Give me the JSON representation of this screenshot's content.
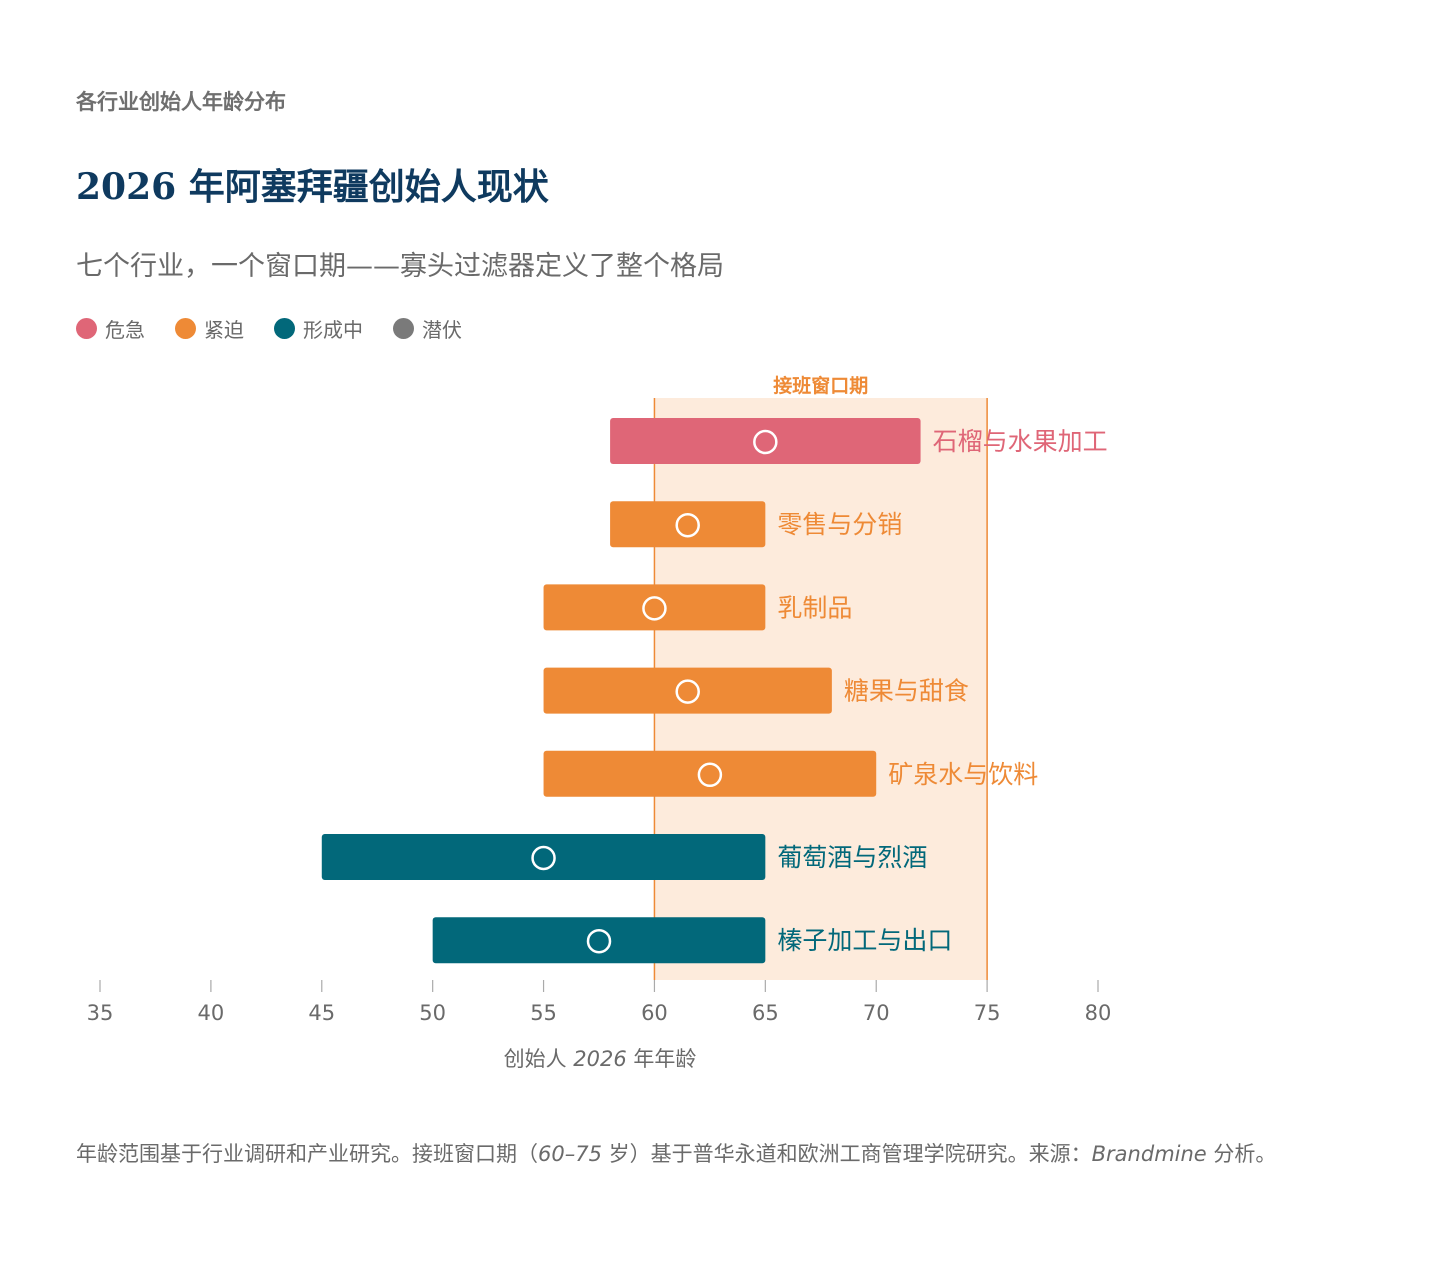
{
  "header": {
    "eyebrow": "各行业创始人年龄分布",
    "title": "2026 年阿塞拜疆创始人现状",
    "subtitle": "七个行业，一个窗口期——寡头过滤器定义了整个格局"
  },
  "legend": [
    {
      "label": "危急",
      "color": "#df6677"
    },
    {
      "label": "紧迫",
      "color": "#ee8a36"
    },
    {
      "label": "形成中",
      "color": "#02687a"
    },
    {
      "label": "潜伏",
      "color": "#7a7a7a"
    }
  ],
  "chart_data": {
    "type": "range-bar",
    "window": {
      "label": "接班窗口期",
      "start": 60,
      "end": 75,
      "color": "#ee8a36"
    },
    "xlim": [
      35,
      80
    ],
    "xticks": [
      "35",
      "40",
      "45",
      "50",
      "55",
      "60",
      "65",
      "70",
      "75",
      "80"
    ],
    "xlabel_main": "创始人",
    "xlabel_year": "2026",
    "xlabel_tail": "年年龄",
    "series": [
      {
        "name": "石榴与水果加工",
        "min": 58,
        "max": 72,
        "marker": 65,
        "status": "危急",
        "color": "#df6677"
      },
      {
        "name": "零售与分销",
        "min": 58,
        "max": 65,
        "marker": 61.5,
        "status": "紧迫",
        "color": "#ee8a36"
      },
      {
        "name": "乳制品",
        "min": 55,
        "max": 65,
        "marker": 60,
        "status": "紧迫",
        "color": "#ee8a36"
      },
      {
        "name": "糖果与甜食",
        "min": 55,
        "max": 68,
        "marker": 61.5,
        "status": "紧迫",
        "color": "#ee8a36"
      },
      {
        "name": "矿泉水与饮料",
        "min": 55,
        "max": 70,
        "marker": 62.5,
        "status": "紧迫",
        "color": "#ee8a36"
      },
      {
        "name": "葡萄酒与烈酒",
        "min": 45,
        "max": 65,
        "marker": 55,
        "status": "形成中",
        "color": "#02687a"
      },
      {
        "name": "榛子加工与出口",
        "min": 50,
        "max": 65,
        "marker": 57.5,
        "status": "形成中",
        "color": "#02687a"
      }
    ]
  },
  "footnote": {
    "part1": "年龄范围基于行业调研和产业研究。接班窗口期（",
    "range": "60–75",
    "part2": " 岁）基于普华永道和欧洲工商管理学院研究。来源：",
    "brand": "Brandmine",
    "part3": " 分析。"
  }
}
